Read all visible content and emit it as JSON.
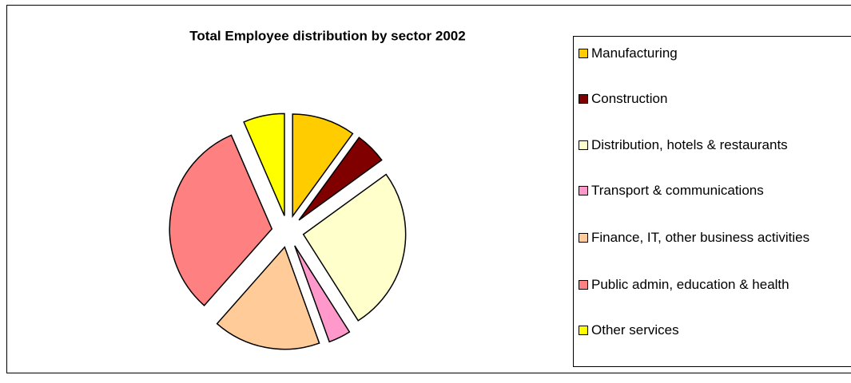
{
  "chart_data": {
    "type": "pie",
    "title": "Total Employee distribution by sector 2002",
    "categories": [
      "Manufacturing",
      "Construction",
      "Distribution, hotels & restaurants",
      "Transport & communications",
      "Finance, IT, other business activities",
      "Public admin, education & health",
      "Other services"
    ],
    "values": [
      10,
      5,
      26,
      3.5,
      17,
      32,
      6.5
    ],
    "colors": [
      "#FFCC00",
      "#800000",
      "#FFFFCC",
      "#FF99CC",
      "#FFCC99",
      "#FF8080",
      "#FFFF00"
    ],
    "exploded": true
  }
}
